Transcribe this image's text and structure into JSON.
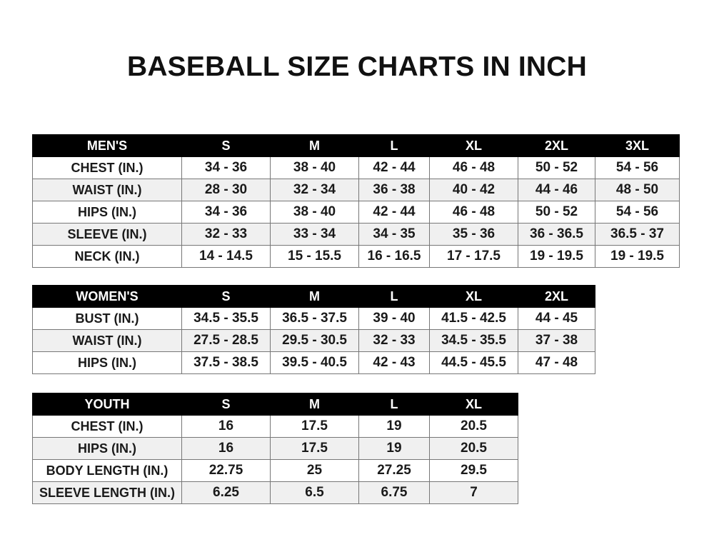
{
  "title": "BASEBALL SIZE CHARTS IN INCH",
  "tables": [
    {
      "id": "mens",
      "headers": [
        "MEN'S",
        "S",
        "M",
        "L",
        "XL",
        "2XL",
        "3XL"
      ],
      "rows": [
        [
          "CHEST (IN.)",
          "34 - 36",
          "38 - 40",
          "42 - 44",
          "46 - 48",
          "50 - 52",
          "54 - 56"
        ],
        [
          "WAIST (IN.)",
          "28 - 30",
          "32 - 34",
          "36 - 38",
          "40 - 42",
          "44 - 46",
          "48 - 50"
        ],
        [
          "HIPS (IN.)",
          "34 - 36",
          "38 - 40",
          "42 - 44",
          "46 - 48",
          "50 - 52",
          "54 - 56"
        ],
        [
          "SLEEVE (IN.)",
          "32 - 33",
          "33 - 34",
          "34 - 35",
          "35 - 36",
          "36 - 36.5",
          "36.5 - 37"
        ],
        [
          "NECK (IN.)",
          "14 - 14.5",
          "15 - 15.5",
          "16 - 16.5",
          "17 - 17.5",
          "19 - 19.5",
          "19 - 19.5"
        ]
      ]
    },
    {
      "id": "womens",
      "headers": [
        "WOMEN'S",
        "S",
        "M",
        "L",
        "XL",
        "2XL"
      ],
      "rows": [
        [
          "BUST (IN.)",
          "34.5 - 35.5",
          "36.5 - 37.5",
          "39 - 40",
          "41.5 - 42.5",
          "44 - 45"
        ],
        [
          "WAIST (IN.)",
          "27.5 - 28.5",
          "29.5 - 30.5",
          "32 - 33",
          "34.5 - 35.5",
          "37 - 38"
        ],
        [
          "HIPS (IN.)",
          "37.5 - 38.5",
          "39.5 - 40.5",
          "42 - 43",
          "44.5 - 45.5",
          "47 - 48"
        ]
      ]
    },
    {
      "id": "youth",
      "headers": [
        "YOUTH",
        "S",
        "M",
        "L",
        "XL"
      ],
      "rows": [
        [
          "CHEST (IN.)",
          "16",
          "17.5",
          "19",
          "20.5"
        ],
        [
          "HIPS (IN.)",
          "16",
          "17.5",
          "19",
          "20.5"
        ],
        [
          "BODY LENGTH (IN.)",
          "22.75",
          "25",
          "27.25",
          "29.5"
        ],
        [
          "SLEEVE LENGTH (IN.)",
          "6.25",
          "6.5",
          "6.75",
          "7"
        ]
      ]
    }
  ]
}
